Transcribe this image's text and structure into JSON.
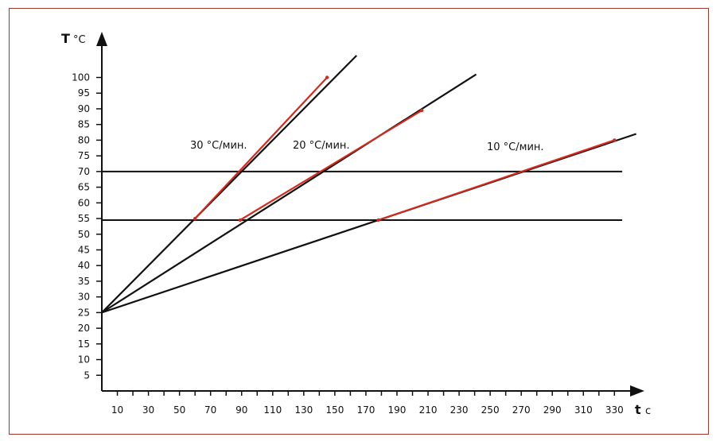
{
  "chart_data": {
    "type": "line",
    "ylabel_symbol": "T",
    "ylabel_unit": "°C",
    "xlabel_symbol": "t",
    "xlabel_unit": "c",
    "xlim": [
      0,
      345
    ],
    "ylim": [
      0,
      110
    ],
    "x_ticks": [
      10,
      30,
      50,
      70,
      90,
      110,
      130,
      150,
      170,
      190,
      210,
      230,
      250,
      270,
      290,
      310,
      330
    ],
    "y_ticks": [
      5,
      10,
      15,
      20,
      25,
      30,
      35,
      40,
      45,
      50,
      55,
      60,
      65,
      70,
      75,
      80,
      85,
      90,
      95,
      100
    ],
    "colors": {
      "line": "#111111",
      "highlight": "#d42a1e",
      "frame": "#a6342e"
    },
    "reference_lines": [
      {
        "y": 54.5,
        "x_range": [
          0,
          335
        ]
      },
      {
        "y": 70,
        "x_range": [
          0,
          335
        ]
      }
    ],
    "series": [
      {
        "name": "30 °C/мин.",
        "x_range": [
          0,
          164
        ],
        "y_range": [
          25,
          107
        ],
        "highlight_x_range": [
          60,
          145
        ],
        "highlight_y_range": [
          55,
          100
        ]
      },
      {
        "name": "20 °C/мин.",
        "x_range": [
          0,
          241
        ],
        "y_range": [
          25,
          101
        ],
        "highlight_x_range": [
          89,
          206
        ],
        "highlight_y_range": [
          54.5,
          89.5
        ]
      },
      {
        "name": "10 °C/мин.",
        "x_range": [
          0,
          344
        ],
        "y_range": [
          25,
          82
        ],
        "highlight_x_range": [
          178,
          330
        ],
        "highlight_y_range": [
          54.5,
          80
        ]
      }
    ]
  }
}
